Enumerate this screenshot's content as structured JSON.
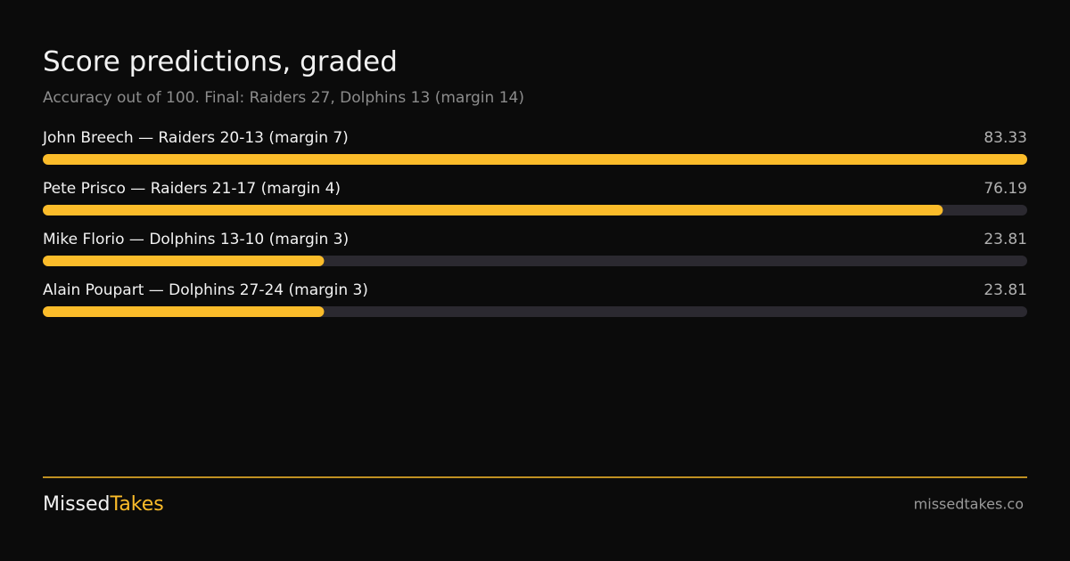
{
  "chart_data": {
    "type": "bar",
    "title": "Score predictions, graded",
    "subtitle": "Accuracy out of 100. Final: Raiders 27, Dolphins 13 (margin 14)",
    "categories": [
      "John Breech — Raiders 20-13 (margin 7)",
      "Pete Prisco — Raiders 21-17 (margin 4)",
      "Mike Florio — Dolphins 13-10 (margin 3)",
      "Alain Poupart — Dolphins 27-24 (margin 3)"
    ],
    "values": [
      83.33,
      76.19,
      23.81,
      23.81
    ],
    "color": "#fbbc2a",
    "track_color": "#2b2930"
  },
  "footer": {
    "brand_first": "Missed",
    "brand_second": "Takes",
    "url": "missedtakes.co"
  }
}
